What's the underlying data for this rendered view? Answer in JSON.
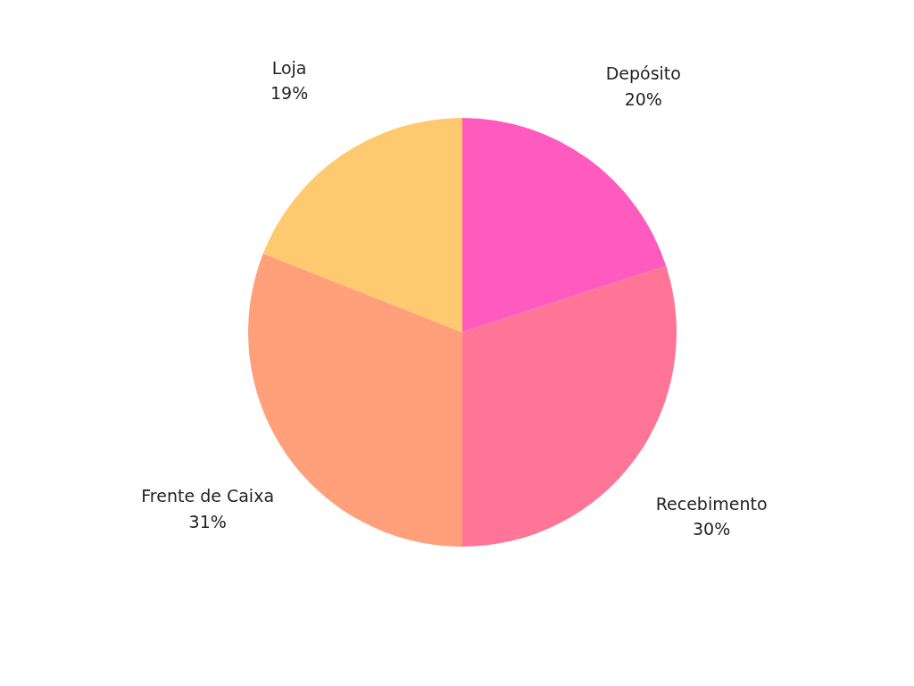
{
  "chart_data": {
    "type": "pie",
    "categories": [
      "Depósito",
      "Recebimento",
      "Frente de Caixa",
      "Loja"
    ],
    "values": [
      20,
      30,
      31,
      19
    ],
    "colors": [
      "#ff5bbf",
      "#ff7597",
      "#ffa07a",
      "#ffc96f"
    ],
    "value_labels": [
      "20%",
      "30%",
      "31%",
      "19%"
    ]
  }
}
